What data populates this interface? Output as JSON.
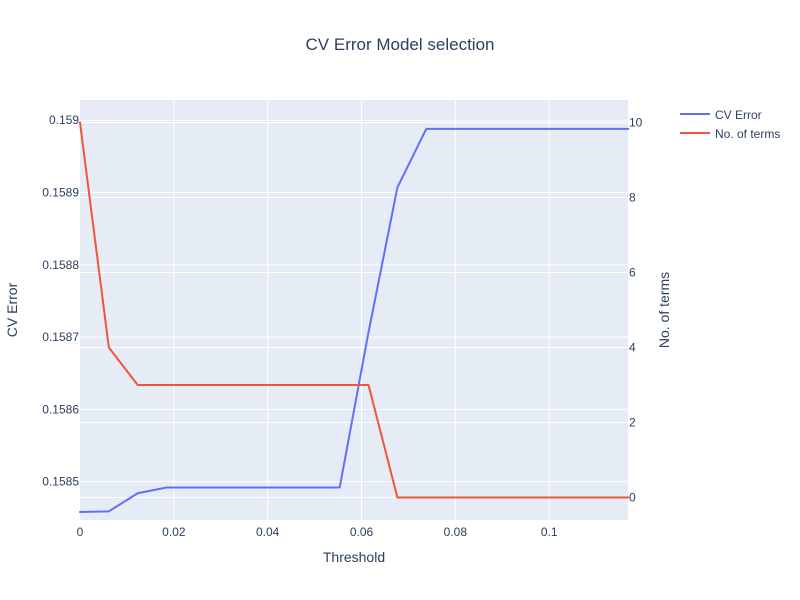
{
  "chart_data": {
    "type": "line",
    "title": "CV Error Model selection",
    "xlabel": "Threshold",
    "ylabel": "CV Error",
    "y2label": "No. of terms",
    "xlim": [
      0,
      0.1168
    ],
    "ylim": [
      0.158447,
      0.159028
    ],
    "y2lim": [
      -0.6,
      10.6
    ],
    "x_ticks": [
      {
        "value": 0,
        "label": "0"
      },
      {
        "value": 0.02,
        "label": "0.02"
      },
      {
        "value": 0.04,
        "label": "0.04"
      },
      {
        "value": 0.06,
        "label": "0.06"
      },
      {
        "value": 0.08,
        "label": "0.08"
      },
      {
        "value": 0.1,
        "label": "0.1"
      }
    ],
    "y_ticks": [
      {
        "value": 0.1585,
        "label": "0.1585"
      },
      {
        "value": 0.1586,
        "label": "0.1586"
      },
      {
        "value": 0.1587,
        "label": "0.1587"
      },
      {
        "value": 0.1588,
        "label": "0.1588"
      },
      {
        "value": 0.1589,
        "label": "0.1589"
      },
      {
        "value": 0.159,
        "label": "0.159"
      }
    ],
    "y2_ticks": [
      {
        "value": 0,
        "label": "0"
      },
      {
        "value": 2,
        "label": "2"
      },
      {
        "value": 4,
        "label": "4"
      },
      {
        "value": 6,
        "label": "6"
      },
      {
        "value": 8,
        "label": "8"
      },
      {
        "value": 10,
        "label": "10"
      }
    ],
    "grid": true,
    "legend_position": "top-right",
    "series": [
      {
        "name": "CV Error",
        "axis": "y",
        "color": "#636efa",
        "x": [
          0,
          0.00615,
          0.0123,
          0.01845,
          0.0246,
          0.03075,
          0.0369,
          0.04305,
          0.0492,
          0.05535,
          0.0615,
          0.06765,
          0.0738,
          0.07995,
          0.0861,
          0.09225,
          0.0984,
          0.10455,
          0.1107,
          0.11685
        ],
        "values": [
          0.158458,
          0.158459,
          0.158484,
          0.158492,
          0.158492,
          0.158492,
          0.158492,
          0.158492,
          0.158492,
          0.158492,
          0.158707,
          0.158907,
          0.158988,
          0.158988,
          0.158988,
          0.158988,
          0.158988,
          0.158988,
          0.158988,
          0.158988
        ]
      },
      {
        "name": "No. of terms",
        "axis": "y2",
        "color": "#ef553b",
        "x": [
          0,
          0.00615,
          0.0123,
          0.01845,
          0.0246,
          0.03075,
          0.0369,
          0.04305,
          0.0492,
          0.05535,
          0.0615,
          0.06765,
          0.0738,
          0.07995,
          0.0861,
          0.09225,
          0.0984,
          0.10455,
          0.1107,
          0.11685
        ],
        "values": [
          10,
          4,
          3,
          3,
          3,
          3,
          3,
          3,
          3,
          3,
          3,
          0,
          0,
          0,
          0,
          0,
          0,
          0,
          0,
          0
        ]
      }
    ],
    "colors": {
      "plot_background": "#e5ecf6",
      "grid": "#ffffff",
      "text": "#2a3f5f"
    }
  }
}
